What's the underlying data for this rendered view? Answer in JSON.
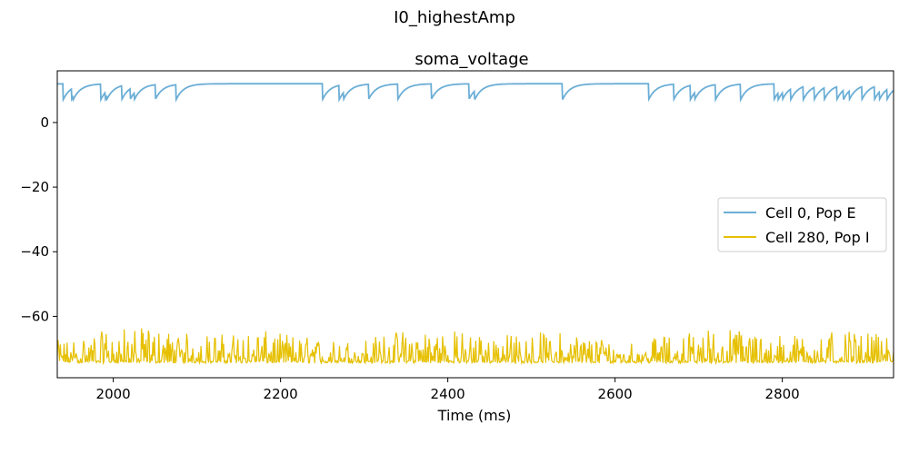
{
  "chart_data": {
    "type": "line",
    "suptitle": "I0_highestAmp",
    "title": "soma_voltage",
    "xlabel": "Time (ms)",
    "ylabel": "",
    "xlim": [
      1933,
      2933
    ],
    "ylim": [
      -79,
      16
    ],
    "xticks": [
      2000,
      2200,
      2400,
      2600,
      2800
    ],
    "yticks": [
      0,
      -20,
      -40,
      -60
    ],
    "grid": false,
    "legend_position": "center-right",
    "series": [
      {
        "name": "Cell 0, Pop E",
        "color": "#6baed6",
        "kind": "adapting-plateau",
        "range": [
          7,
          12
        ],
        "events": [
          1940,
          1950,
          1952,
          1985,
          1990,
          1992,
          2010,
          2020,
          2025,
          2050,
          2075,
          2250,
          2270,
          2275,
          2305,
          2340,
          2380,
          2425,
          2432,
          2537,
          2640,
          2670,
          2690,
          2695,
          2720,
          2750,
          2790,
          2795,
          2800,
          2810,
          2825,
          2838,
          2850,
          2865,
          2873,
          2880,
          2895,
          2910,
          2916,
          2925,
          2933
        ]
      },
      {
        "name": "Cell 280, Pop I",
        "color": "#e6c000",
        "kind": "noisy-baseline",
        "baseline": -74.5,
        "range": [
          -75,
          -63
        ]
      }
    ]
  }
}
